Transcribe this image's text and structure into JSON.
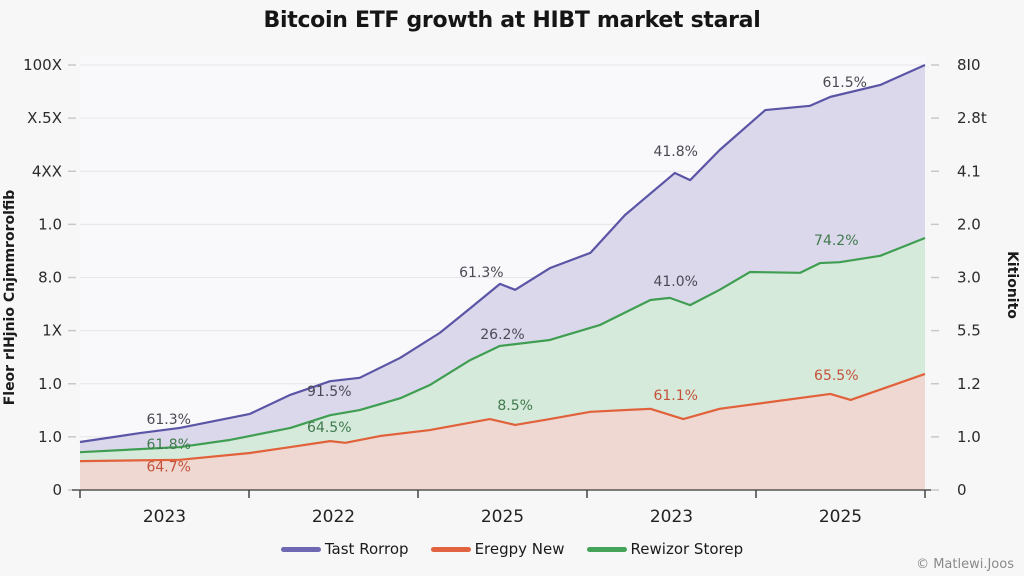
{
  "chart_data": {
    "type": "area",
    "title": "Bitcoin ETF growth at HIBT  market staral",
    "xlabel": "",
    "ylabel": "Fleor rIHjnio Cnjmmrorolfib",
    "ylabel_right": "Kitionito",
    "x_tick_labels": [
      "2023",
      "2022",
      "2025",
      "2023",
      "2025"
    ],
    "x_domain": [
      0,
      100
    ],
    "ylim": [
      0,
      100
    ],
    "y_tick_labels_left": [
      "0",
      "1.0",
      "1.0",
      "1X",
      "8.0",
      "1.0",
      "4XX",
      "X.5X",
      "100X"
    ],
    "y_tick_labels_right": [
      "0",
      "1.0",
      "1.2",
      "5.5",
      "3.0",
      "2.0",
      "4.1",
      "2.8t",
      "8I0"
    ],
    "grid": true,
    "legend_position": "bottom",
    "stacking": "overlapping",
    "series": [
      {
        "name": "Tast Rorrop",
        "color": "#5b55a6",
        "fill": "#dcd8ec",
        "x": [
          0,
          7.1,
          11.8,
          20.1,
          24.9,
          29.6,
          33.1,
          37.9,
          42.6,
          46.2,
          49.7,
          51.5,
          55.6,
          60.4,
          64.5,
          70.4,
          72.2,
          75.7,
          81.1,
          86.4,
          88.8,
          94.7,
          100
        ],
        "values": [
          11.3,
          13.4,
          14.6,
          17.9,
          22.4,
          25.6,
          26.4,
          31.1,
          37.0,
          42.8,
          48.5,
          47.1,
          52.2,
          55.8,
          64.7,
          74.6,
          72.9,
          80.0,
          89.4,
          90.4,
          92.5,
          95.3,
          100
        ]
      },
      {
        "name": "Rewizor Storep",
        "color": "#3f9e52",
        "fill": "#d6eadc",
        "x": [
          0,
          11.8,
          17.8,
          24.9,
          29.6,
          33.1,
          37.9,
          41.4,
          46.2,
          49.7,
          55.6,
          61.5,
          67.5,
          69.8,
          72.2,
          75.7,
          79.3,
          85.2,
          87.6,
          89.9,
          94.7,
          100
        ],
        "values": [
          8.9,
          10.1,
          11.8,
          14.6,
          17.6,
          18.8,
          21.6,
          24.7,
          30.6,
          33.9,
          35.3,
          38.8,
          44.7,
          45.2,
          43.5,
          47.1,
          51.3,
          51.1,
          53.4,
          53.6,
          55.1,
          59.3
        ]
      },
      {
        "name": "Eregpy New",
        "color": "#e0613a",
        "fill": "#f0d8d2",
        "x": [
          0,
          11.8,
          20.1,
          24.9,
          29.6,
          31.4,
          35.5,
          41.4,
          48.5,
          51.5,
          55.6,
          60.4,
          67.5,
          71.4,
          75.7,
          81.7,
          88.8,
          91.2,
          100
        ],
        "values": [
          6.8,
          7.1,
          8.7,
          10.1,
          11.5,
          11.1,
          12.7,
          14.1,
          16.7,
          15.3,
          16.7,
          18.4,
          19.1,
          16.7,
          19.1,
          20.7,
          22.6,
          21.2,
          27.3
        ]
      }
    ],
    "annotations": [
      {
        "text": "61.3%",
        "series": "Tast Rorrop",
        "x": 10.5,
        "y": 15.5
      },
      {
        "text": "91.5%",
        "series": "Tast Rorrop",
        "x": 29.5,
        "y": 22.1
      },
      {
        "text": "61.3%",
        "series": "Tast Rorrop",
        "x": 47.5,
        "y": 50.1
      },
      {
        "text": "41.8%",
        "series": "Tast Rorrop",
        "x": 70.5,
        "y": 78.6
      },
      {
        "text": "61.5%",
        "series": "Tast Rorrop",
        "x": 90.5,
        "y": 94.8
      },
      {
        "text": "61.8%",
        "series": "Rewizor Storep",
        "x": 10.5,
        "y": 9.6
      },
      {
        "text": "64.5%",
        "series": "Rewizor Storep",
        "x": 29.5,
        "y": 13.6
      },
      {
        "text": "8.5%",
        "series": "Rewizor Storep",
        "x": 51.5,
        "y": 18.8
      },
      {
        "text": "26.2%",
        "series": "Tast Rorrop",
        "x": 50.0,
        "y": 35.5
      },
      {
        "text": "41.0%",
        "series": "Tast Rorrop",
        "x": 70.5,
        "y": 48.0
      },
      {
        "text": "74.2%",
        "series": "Rewizor Storep",
        "x": 89.5,
        "y": 57.6
      },
      {
        "text": "64.7%",
        "series": "Eregpy New",
        "x": 10.5,
        "y": 4.4
      },
      {
        "text": "61.1%",
        "series": "Eregpy New",
        "x": 70.5,
        "y": 21.2
      },
      {
        "text": "65.5%",
        "series": "Eregpy New",
        "x": 89.5,
        "y": 25.9
      }
    ]
  },
  "legend": [
    {
      "label": "Tast Rorrop",
      "color": "#6e68b3"
    },
    {
      "label": "Eregpy New",
      "color": "#e2633f"
    },
    {
      "label": "Rewizor Storep",
      "color": "#45a35a"
    }
  ],
  "credit": "© Matlewi.Joos"
}
